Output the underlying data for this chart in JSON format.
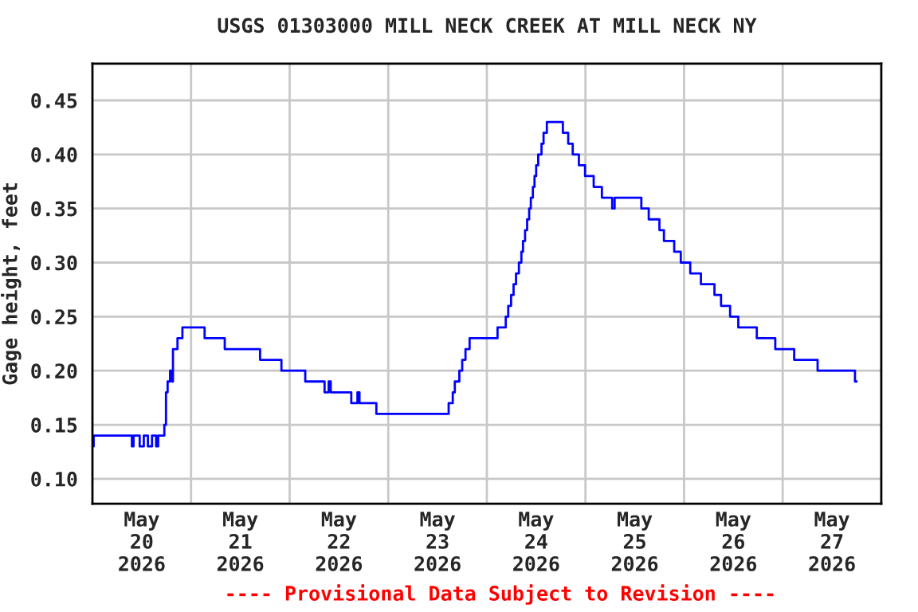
{
  "chart_data": {
    "type": "step",
    "title": "USGS 01303000 MILL NECK CREEK AT MILL NECK NY",
    "ylabel": "Gage height, feet",
    "annotations": [
      "---- Provisional Data Subject to Revision ----"
    ],
    "series": [
      {
        "color": "#0000ff",
        "x": [
          "2026-05-20T00:00",
          "2026-05-20T00:18",
          "2026-05-20T09:36",
          "2026-05-20T10:00",
          "2026-05-20T11:30",
          "2026-05-20T12:30",
          "2026-05-20T13:30",
          "2026-05-20T14:30",
          "2026-05-20T15:30",
          "2026-05-20T16:00",
          "2026-05-20T17:30",
          "2026-05-20T17:54",
          "2026-05-20T18:18",
          "2026-05-20T18:54",
          "2026-05-20T19:24",
          "2026-05-20T19:36",
          "2026-05-20T20:42",
          "2026-05-20T21:54",
          "2026-05-21T03:18",
          "2026-05-21T08:12",
          "2026-05-21T16:48",
          "2026-05-21T22:00",
          "2026-05-22T03:48",
          "2026-05-22T08:30",
          "2026-05-22T09:30",
          "2026-05-22T10:00",
          "2026-05-22T15:00",
          "2026-05-22T16:30",
          "2026-05-22T17:00",
          "2026-05-22T21:06",
          "2026-05-23T14:42",
          "2026-05-23T15:42",
          "2026-05-23T16:12",
          "2026-05-23T17:18",
          "2026-05-23T18:00",
          "2026-05-23T18:48",
          "2026-05-23T19:48",
          "2026-05-24T02:36",
          "2026-05-24T04:36",
          "2026-05-24T05:12",
          "2026-05-24T05:54",
          "2026-05-24T06:30",
          "2026-05-24T07:06",
          "2026-05-24T07:48",
          "2026-05-24T08:24",
          "2026-05-24T08:48",
          "2026-05-24T09:18",
          "2026-05-24T09:48",
          "2026-05-24T10:18",
          "2026-05-24T10:42",
          "2026-05-24T11:12",
          "2026-05-24T11:36",
          "2026-05-24T12:00",
          "2026-05-24T12:30",
          "2026-05-24T13:18",
          "2026-05-24T13:48",
          "2026-05-24T14:36",
          "2026-05-24T18:30",
          "2026-05-24T19:48",
          "2026-05-24T20:54",
          "2026-05-24T22:24",
          "2026-05-24T23:54",
          "2026-05-25T02:00",
          "2026-05-25T04:00",
          "2026-05-25T06:30",
          "2026-05-25T07:06",
          "2026-05-25T13:36",
          "2026-05-25T15:24",
          "2026-05-25T18:00",
          "2026-05-25T19:06",
          "2026-05-25T21:36",
          "2026-05-25T23:12",
          "2026-05-26T01:30",
          "2026-05-26T04:06",
          "2026-05-26T07:24",
          "2026-05-26T09:00",
          "2026-05-26T11:12",
          "2026-05-26T13:12",
          "2026-05-26T17:42",
          "2026-05-26T22:12",
          "2026-05-27T02:48",
          "2026-05-27T08:30",
          "2026-05-27T17:36",
          "2026-05-27T18:00"
        ],
        "values": [
          0.13,
          0.14,
          0.13,
          0.14,
          0.13,
          0.14,
          0.13,
          0.14,
          0.13,
          0.14,
          0.15,
          0.18,
          0.19,
          0.2,
          0.19,
          0.22,
          0.23,
          0.24,
          0.23,
          0.22,
          0.21,
          0.2,
          0.19,
          0.18,
          0.19,
          0.18,
          0.17,
          0.18,
          0.17,
          0.16,
          0.17,
          0.18,
          0.19,
          0.2,
          0.21,
          0.22,
          0.23,
          0.24,
          0.25,
          0.26,
          0.27,
          0.28,
          0.29,
          0.3,
          0.31,
          0.32,
          0.33,
          0.34,
          0.35,
          0.36,
          0.37,
          0.38,
          0.39,
          0.4,
          0.41,
          0.42,
          0.43,
          0.42,
          0.41,
          0.4,
          0.39,
          0.38,
          0.37,
          0.36,
          0.35,
          0.36,
          0.35,
          0.34,
          0.33,
          0.32,
          0.31,
          0.3,
          0.29,
          0.28,
          0.27,
          0.26,
          0.25,
          0.24,
          0.23,
          0.22,
          0.21,
          0.2,
          0.19,
          0.19
        ]
      }
    ],
    "xlim": [
      "2026-05-20T00:00",
      "2026-05-28T00:00"
    ],
    "xticks": [
      {
        "value": "2026-05-20T12:00",
        "label": "May\n20\n2026"
      },
      {
        "value": "2026-05-21T00:00",
        "label": null
      },
      {
        "value": "2026-05-21T12:00",
        "label": "May\n21\n2026"
      },
      {
        "value": "2026-05-22T00:00",
        "label": null
      },
      {
        "value": "2026-05-22T12:00",
        "label": "May\n22\n2026"
      },
      {
        "value": "2026-05-23T00:00",
        "label": null
      },
      {
        "value": "2026-05-23T12:00",
        "label": "May\n23\n2026"
      },
      {
        "value": "2026-05-24T00:00",
        "label": null
      },
      {
        "value": "2026-05-24T12:00",
        "label": "May\n24\n2026"
      },
      {
        "value": "2026-05-25T00:00",
        "label": null
      },
      {
        "value": "2026-05-25T12:00",
        "label": "May\n25\n2026"
      },
      {
        "value": "2026-05-26T00:00",
        "label": null
      },
      {
        "value": "2026-05-26T12:00",
        "label": "May\n26\n2026"
      },
      {
        "value": "2026-05-27T00:00",
        "label": null
      },
      {
        "value": "2026-05-27T12:00",
        "label": "May\n27\n2026"
      }
    ],
    "ylim": [
      0.077,
      0.484
    ],
    "yticks": [
      {
        "value": 0.1,
        "label": "0.10"
      },
      {
        "value": 0.15,
        "label": "0.15"
      },
      {
        "value": 0.2,
        "label": "0.20"
      },
      {
        "value": 0.25,
        "label": "0.25"
      },
      {
        "value": 0.3,
        "label": "0.30"
      },
      {
        "value": 0.35,
        "label": "0.35"
      },
      {
        "value": 0.4,
        "label": "0.40"
      },
      {
        "value": 0.45,
        "label": "0.45"
      }
    ],
    "grid": true
  }
}
